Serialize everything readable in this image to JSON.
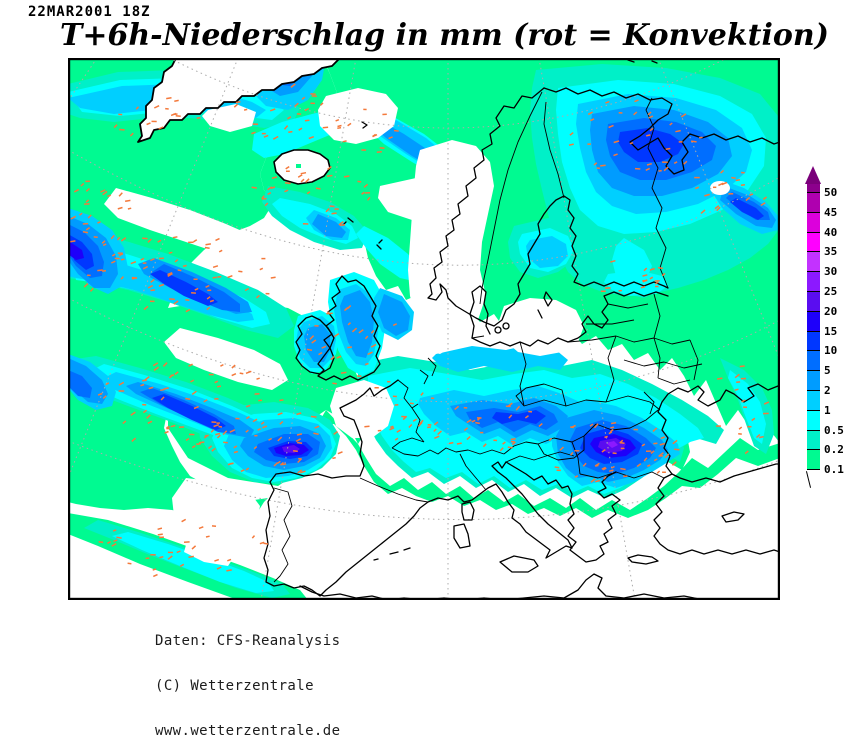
{
  "header": {
    "datetime": "22MAR2001 18Z"
  },
  "title": "T+6h-Niederschlag in mm (rot = Konvektion)",
  "footer": {
    "line1": "Daten: CFS-Reanalysis",
    "line2": "(C) Wetterzentrale",
    "line3": "www.wetterzentrale.de"
  },
  "legend": {
    "unit": "mm",
    "labels_top_to_bottom": [
      "50",
      "45",
      "40",
      "35",
      "30",
      "25",
      "20",
      "15",
      "10",
      "5",
      "2",
      "1",
      "0.5",
      "0.2",
      "0.1"
    ],
    "overflow_arrow_color": "#7A007A",
    "segment_colors_top_to_bottom": [
      "#8C008C",
      "#AF00AF",
      "#DC00DC",
      "#FF00FF",
      "#C332FF",
      "#8C19FF",
      "#5A0DF0",
      "#1E00FA",
      "#0037FF",
      "#006EFF",
      "#009CFF",
      "#00CFFF",
      "#00FFFF",
      "#00F0C8",
      "#00FA91"
    ],
    "tick_color": "#000000"
  },
  "map": {
    "region_label": "Europe / North Atlantic",
    "background_color": "#FFFFFF",
    "coastline_color": "#000000",
    "graticule_color": "#ABABAB",
    "convection_color": "#F4793B",
    "field_palette": {
      "0.1": "#00FA91",
      "0.2": "#00F0C8",
      "0.5": "#00FFFF",
      "1": "#00CFFF",
      "2": "#009CFF",
      "5": "#006EFF",
      "10": "#0037FF",
      "15": "#1E00FA",
      "20": "#5A0DF0",
      "25": "#8C19FF"
    }
  }
}
